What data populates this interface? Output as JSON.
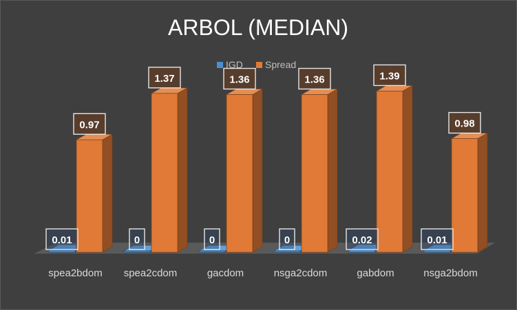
{
  "chart_data": {
    "type": "bar",
    "title": "ARBOL (MEDIAN)",
    "categories": [
      "spea2bdom",
      "spea2cdom",
      "gacdom",
      "nsga2cdom",
      "gabdom",
      "nsga2bdom"
    ],
    "series": [
      {
        "name": "IGD",
        "values": [
          0.01,
          0,
          0,
          0,
          0.02,
          0.01
        ],
        "color": "#4a8fd4"
      },
      {
        "name": "Spread",
        "values": [
          0.97,
          1.37,
          1.36,
          1.36,
          1.39,
          0.98
        ],
        "color": "#e07a36"
      }
    ],
    "data_labels": [
      [
        "0.01",
        "0",
        "0",
        "0",
        "0.02",
        "0.01"
      ],
      [
        "0.97",
        "1.37",
        "1.36",
        "1.36",
        "1.39",
        "0.98"
      ]
    ],
    "ylim": [
      0,
      1.6
    ],
    "legend_position": "top-center",
    "grid": false,
    "style": "3d-clustered-column"
  }
}
